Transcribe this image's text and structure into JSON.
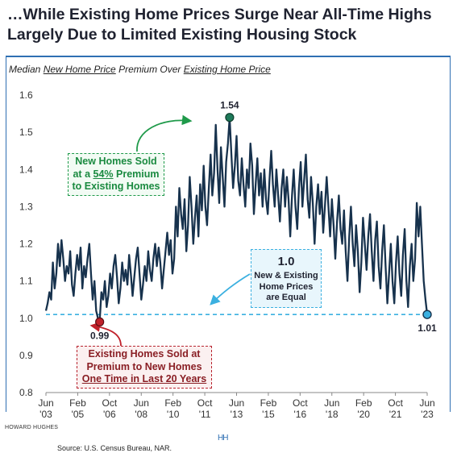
{
  "header": {
    "title_line1": "…While Existing Home Prices Surge Near All-Time Highs",
    "title_line2": "Largely Due to Limited Existing Housing Stock"
  },
  "subtitle": {
    "prefix": "Median ",
    "series_a": "New Home Price",
    "middle": " Premium Over ",
    "series_b": "Existing Home Price"
  },
  "annotations": {
    "peak_label": "1.54",
    "low_label": "0.99",
    "end_label": "1.01",
    "green_box": {
      "line1": "New Homes Sold",
      "line2_pre": "at a ",
      "line2_pct": "54%",
      "line2_post": " Premium",
      "line3": "to Existing Homes"
    },
    "blue_box": {
      "value": "1.0",
      "line1": "New & Existing",
      "line2": "Home Prices",
      "line3": "are Equal"
    },
    "red_box": {
      "line1": "Existing Homes Sold at",
      "line2": "Premium to New Homes",
      "line3": "One Time in Last 20 Years"
    }
  },
  "footer": {
    "brand": "HOWARD HUGHES",
    "logo": "HH",
    "source": "Source: U.S. Census Bureau, NAR."
  },
  "colors": {
    "line": "#17324d",
    "accent_blue": "#2f6fb3",
    "reference": "#3bb0e0",
    "green": "#1f9a4a",
    "teal_marker": "#1e7a5a",
    "red_marker": "#c0202a"
  },
  "chart_data": {
    "type": "line",
    "x_tick_labels": [
      [
        "Jun",
        "'03"
      ],
      [
        "Feb",
        "'05"
      ],
      [
        "Oct",
        "'06"
      ],
      [
        "Jun",
        "'08"
      ],
      [
        "Feb",
        "'10"
      ],
      [
        "Oct",
        "'11"
      ],
      [
        "Jun",
        "'13"
      ],
      [
        "Feb",
        "'15"
      ],
      [
        "Oct",
        "'16"
      ],
      [
        "Jun",
        "'18"
      ],
      [
        "Feb",
        "'20"
      ],
      [
        "Oct",
        "'21"
      ],
      [
        "Jun",
        "'23"
      ]
    ],
    "x_start": "Jun 2003",
    "x_end": "Jun 2023",
    "y_ticks": [
      "0.8",
      "0.9",
      "1.0",
      "1.1",
      "1.2",
      "1.3",
      "1.4",
      "1.5",
      "1.6"
    ],
    "ylim": [
      0.8,
      1.6
    ],
    "reference_line": 1.01,
    "highlights": [
      {
        "label": "1.54",
        "date": "Jan 2012",
        "value": 1.54
      },
      {
        "label": "0.99",
        "date": "Sep 2005",
        "value": 0.99
      },
      {
        "label": "1.01",
        "date": "Jun 2023",
        "value": 1.01
      }
    ],
    "series": [
      {
        "values": [
          1.02,
          1.04,
          1.07,
          1.05,
          1.15,
          1.08,
          1.12,
          1.2,
          1.14,
          1.21,
          1.16,
          1.1,
          1.14,
          1.12,
          1.18,
          1.09,
          1.06,
          1.12,
          1.17,
          1.13,
          1.19,
          1.08,
          1.14,
          1.11,
          1.16,
          1.2,
          1.12,
          1.05,
          1.1,
          1.02,
          1.0,
          0.99,
          1.07,
          1.05,
          1.1,
          1.03,
          1.06,
          1.12,
          1.08,
          1.14,
          1.17,
          1.11,
          1.04,
          1.08,
          1.15,
          1.1,
          1.13,
          1.09,
          1.17,
          1.12,
          1.06,
          1.11,
          1.16,
          1.19,
          1.12,
          1.05,
          1.09,
          1.14,
          1.1,
          1.18,
          1.13,
          1.1,
          1.16,
          1.2,
          1.14,
          1.19,
          1.15,
          1.08,
          1.13,
          1.18,
          1.23,
          1.17,
          1.21,
          1.12,
          1.16,
          1.3,
          1.22,
          1.35,
          1.28,
          1.24,
          1.32,
          1.18,
          1.25,
          1.38,
          1.3,
          1.2,
          1.27,
          1.33,
          1.22,
          1.36,
          1.29,
          1.41,
          1.3,
          1.25,
          1.35,
          1.44,
          1.33,
          1.39,
          1.52,
          1.4,
          1.31,
          1.46,
          1.38,
          1.3,
          1.42,
          1.47,
          1.54,
          1.44,
          1.35,
          1.41,
          1.49,
          1.37,
          1.33,
          1.43,
          1.36,
          1.3,
          1.4,
          1.35,
          1.47,
          1.41,
          1.28,
          1.36,
          1.43,
          1.33,
          1.39,
          1.3,
          1.4,
          1.32,
          1.28,
          1.37,
          1.45,
          1.36,
          1.3,
          1.4,
          1.33,
          1.26,
          1.35,
          1.4,
          1.3,
          1.38,
          1.32,
          1.22,
          1.33,
          1.4,
          1.3,
          1.24,
          1.35,
          1.42,
          1.3,
          1.37,
          1.44,
          1.32,
          1.27,
          1.38,
          1.31,
          1.2,
          1.3,
          1.36,
          1.28,
          1.34,
          1.23,
          1.3,
          1.38,
          1.3,
          1.22,
          1.32,
          1.25,
          1.16,
          1.26,
          1.33,
          1.24,
          1.2,
          1.29,
          1.18,
          1.1,
          1.22,
          1.3,
          1.2,
          1.14,
          1.25,
          1.18,
          1.07,
          1.15,
          1.27,
          1.2,
          1.13,
          1.22,
          1.28,
          1.18,
          1.1,
          1.21,
          1.26,
          1.14,
          1.08,
          1.18,
          1.25,
          1.14,
          1.04,
          1.12,
          1.2,
          1.1,
          1.04,
          1.15,
          1.22,
          1.12,
          1.06,
          1.17,
          1.24,
          1.1,
          1.03,
          1.14,
          1.2,
          1.1,
          1.16,
          1.31,
          1.22,
          1.3,
          1.2,
          1.1,
          1.05,
          1.01
        ]
      }
    ]
  }
}
